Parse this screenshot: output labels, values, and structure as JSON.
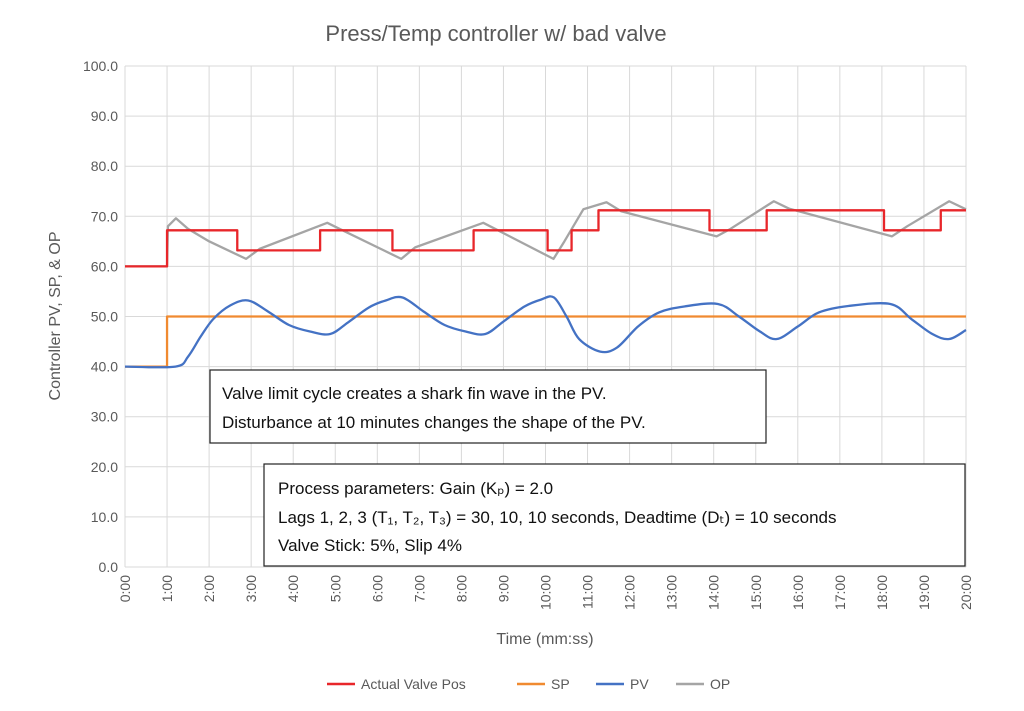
{
  "chart_data": {
    "type": "line",
    "title": "Press/Temp controller w/ bad valve",
    "xlabel": "Time (mm:ss)",
    "ylabel": "Controller PV, SP, & OP",
    "xlim": [
      0,
      20
    ],
    "ylim": [
      0,
      100
    ],
    "x_unit": "minutes",
    "grid": true,
    "legend_position": "bottom",
    "x_ticks": [
      "0:00",
      "1:00",
      "2:00",
      "3:00",
      "4:00",
      "5:00",
      "6:00",
      "7:00",
      "8:00",
      "9:00",
      "10:00",
      "11:00",
      "12:00",
      "13:00",
      "14:00",
      "15:00",
      "16:00",
      "17:00",
      "18:00",
      "19:00",
      "20:00"
    ],
    "y_ticks": [
      "0.0",
      "10.0",
      "20.0",
      "30.0",
      "40.0",
      "50.0",
      "60.0",
      "70.0",
      "80.0",
      "90.0",
      "100.0"
    ],
    "series": [
      {
        "name": "Actual Valve Pos",
        "color": "#e8262a",
        "step": true,
        "points": [
          [
            0,
            60
          ],
          [
            1,
            60
          ],
          [
            1,
            67.2
          ],
          [
            2.67,
            67.2
          ],
          [
            2.67,
            63.2
          ],
          [
            4.64,
            63.2
          ],
          [
            4.64,
            67.2
          ],
          [
            6.36,
            67.2
          ],
          [
            6.36,
            63.2
          ],
          [
            8.29,
            63.2
          ],
          [
            8.29,
            67.2
          ],
          [
            10.05,
            67.2
          ],
          [
            10.05,
            63.2
          ],
          [
            10.62,
            63.2
          ],
          [
            10.62,
            67.2
          ],
          [
            11.26,
            67.2
          ],
          [
            11.26,
            71.2
          ],
          [
            13.9,
            71.2
          ],
          [
            13.9,
            67.2
          ],
          [
            15.26,
            67.2
          ],
          [
            15.26,
            71.2
          ],
          [
            18.05,
            71.2
          ],
          [
            18.05,
            67.2
          ],
          [
            19.4,
            67.2
          ],
          [
            19.4,
            71.2
          ],
          [
            20,
            71.2
          ]
        ]
      },
      {
        "name": "SP",
        "color": "#f08a30",
        "points": [
          [
            0,
            40
          ],
          [
            1,
            40
          ],
          [
            1,
            50
          ],
          [
            20,
            50
          ]
        ]
      },
      {
        "name": "PV",
        "color": "#4472c4",
        "smooth": true,
        "points": [
          [
            0,
            40
          ],
          [
            1.2,
            40
          ],
          [
            1.5,
            42
          ],
          [
            1.8,
            46
          ],
          [
            2.1,
            49.5
          ],
          [
            2.5,
            52.2
          ],
          [
            2.93,
            53.2
          ],
          [
            3.4,
            51
          ],
          [
            3.9,
            48.3
          ],
          [
            4.4,
            47
          ],
          [
            4.88,
            46.5
          ],
          [
            5.3,
            48.8
          ],
          [
            5.8,
            51.8
          ],
          [
            6.2,
            53.2
          ],
          [
            6.6,
            53.8
          ],
          [
            7.1,
            51
          ],
          [
            7.6,
            48.3
          ],
          [
            8.1,
            47
          ],
          [
            8.57,
            46.5
          ],
          [
            9.0,
            49
          ],
          [
            9.5,
            52
          ],
          [
            9.9,
            53.4
          ],
          [
            10.2,
            53.8
          ],
          [
            10.5,
            50
          ],
          [
            10.8,
            45.5
          ],
          [
            11.3,
            43
          ],
          [
            11.7,
            43.8
          ],
          [
            12.2,
            48
          ],
          [
            12.7,
            50.8
          ],
          [
            13.3,
            52
          ],
          [
            14.1,
            52.5
          ],
          [
            14.6,
            50
          ],
          [
            15.1,
            47
          ],
          [
            15.5,
            45.5
          ],
          [
            16,
            48
          ],
          [
            16.5,
            50.8
          ],
          [
            17.2,
            52.1
          ],
          [
            18.2,
            52.5
          ],
          [
            18.7,
            49.5
          ],
          [
            19.2,
            46.5
          ],
          [
            19.6,
            45.5
          ],
          [
            20,
            47.3
          ]
        ]
      },
      {
        "name": "OP",
        "color": "#a5a5a5",
        "points": [
          [
            0,
            60
          ],
          [
            1,
            60
          ],
          [
            1.02,
            68
          ],
          [
            1.21,
            69.6
          ],
          [
            1.5,
            67.5
          ],
          [
            2.0,
            65
          ],
          [
            2.88,
            61.5
          ],
          [
            3.2,
            63.5
          ],
          [
            4.81,
            68.7
          ],
          [
            5.1,
            67.5
          ],
          [
            6.57,
            61.5
          ],
          [
            6.9,
            63.8
          ],
          [
            8.52,
            68.7
          ],
          [
            8.8,
            67.5
          ],
          [
            10.19,
            61.5
          ],
          [
            10.45,
            65
          ],
          [
            10.9,
            71.4
          ],
          [
            11.45,
            72.8
          ],
          [
            11.8,
            71
          ],
          [
            14.07,
            66
          ],
          [
            14.4,
            67.5
          ],
          [
            15.43,
            73
          ],
          [
            15.8,
            71.5
          ],
          [
            18.24,
            66
          ],
          [
            18.6,
            68
          ],
          [
            19.6,
            73
          ],
          [
            20,
            71.4
          ]
        ]
      }
    ],
    "annotations": [
      {
        "lines": [
          "Valve limit cycle creates a shark fin wave in the PV.",
          "Disturbance at 10 minutes changes the shape of the PV."
        ]
      },
      {
        "lines": [
          "Process parameters:  Gain (Kₚ) = 2.0",
          "Lags 1, 2, 3 (T₁, T₂, T₃) = 30, 10, 10 seconds, Deadtime (Dₜ) = 10 seconds",
          "Valve Stick: 5%, Slip 4%"
        ]
      }
    ]
  }
}
